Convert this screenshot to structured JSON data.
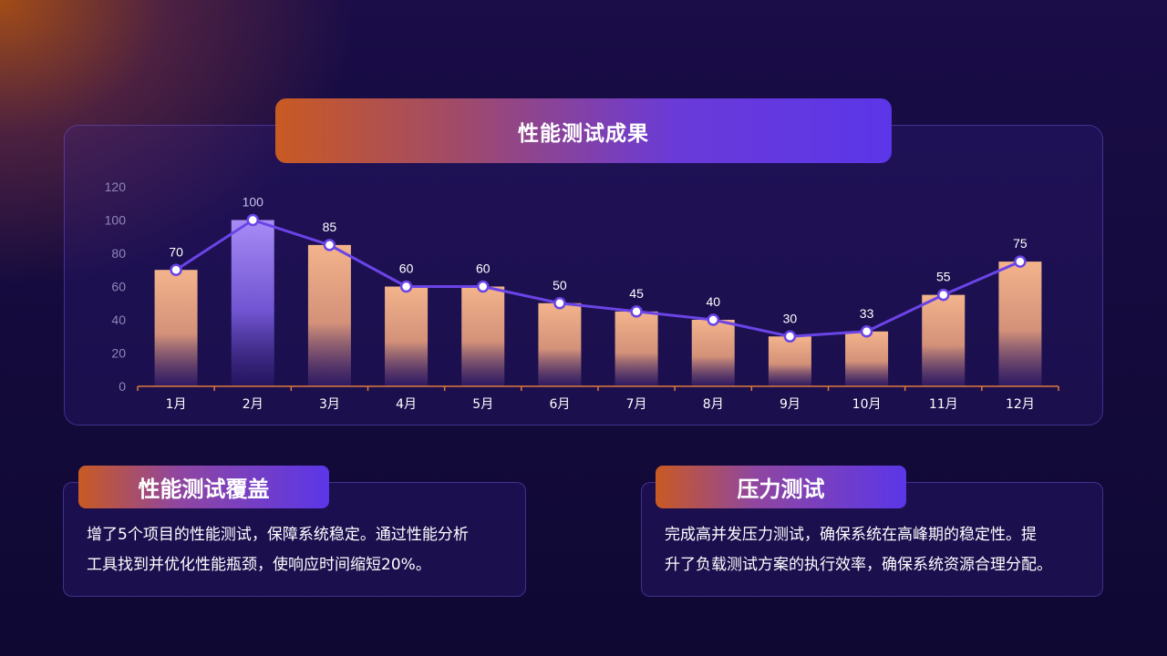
{
  "chart_title": "性能测试成果",
  "colors": {
    "bar_start": "#f3b48c",
    "bar_highlight": "#9a82f0",
    "line": "#6a44e6",
    "axis": "#e07a3a",
    "tick_text": "#8f86b8",
    "label_text": "#ffffff"
  },
  "chart_data": {
    "type": "bar",
    "categories": [
      "1月",
      "2月",
      "3月",
      "4月",
      "5月",
      "6月",
      "7月",
      "8月",
      "9月",
      "10月",
      "11月",
      "12月"
    ],
    "values": [
      70,
      100,
      85,
      60,
      60,
      50,
      45,
      40,
      30,
      33,
      55,
      75
    ],
    "yticks": [
      0,
      20,
      40,
      60,
      80,
      100,
      120
    ],
    "ylim": [
      0,
      120
    ],
    "highlight_index": 1,
    "overlay_line": true,
    "grid": false
  },
  "cards": {
    "left": {
      "title": "性能测试覆盖",
      "lines": [
        "增了5个项目的性能测试，保障系统稳定。通过性能分析",
        "工具找到并优化性能瓶颈，使响应时间缩短20%。"
      ]
    },
    "right": {
      "title": "压力测试",
      "lines": [
        "完成高并发压力测试，确保系统在高峰期的稳定性。提",
        "升了负载测试方案的执行效率，确保系统资源合理分配。"
      ]
    }
  }
}
